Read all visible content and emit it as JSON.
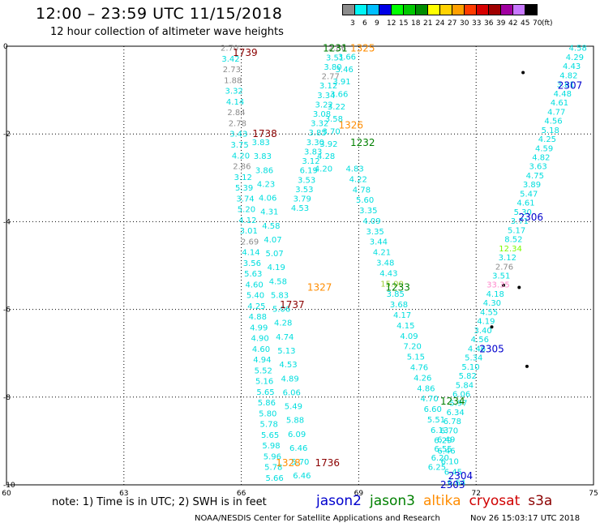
{
  "title": "12:00 – 23:59 UTC 11/15/2018",
  "subtitle": "12 hour collection of altimeter wave heights",
  "scale": {
    "unit_label": "(ft)",
    "bins": [
      {
        "label": "3",
        "color": "#8c8c8c"
      },
      {
        "label": "6",
        "color": "#00f5f5"
      },
      {
        "label": "9",
        "color": "#00bfff"
      },
      {
        "label": "12",
        "color": "#0000e6"
      },
      {
        "label": "15",
        "color": "#00ff00"
      },
      {
        "label": "18",
        "color": "#00c800"
      },
      {
        "label": "21",
        "color": "#008c00"
      },
      {
        "label": "24",
        "color": "#ffff00"
      },
      {
        "label": "27",
        "color": "#ffd200"
      },
      {
        "label": "30",
        "color": "#ffa000"
      },
      {
        "label": "33",
        "color": "#ff3c00"
      },
      {
        "label": "36",
        "color": "#d70000"
      },
      {
        "label": "39",
        "color": "#a00000"
      },
      {
        "label": "42",
        "color": "#a000a0"
      },
      {
        "label": "45",
        "color": "#c878ff"
      },
      {
        "label": "70",
        "color": "#000000"
      }
    ]
  },
  "axes": {
    "lon_labels": [
      "60",
      "63",
      "66",
      "69",
      "72",
      "75"
    ],
    "lat_labels": [
      "0",
      "-2",
      "-4",
      "-6",
      "-8",
      "-10"
    ]
  },
  "tracks": [
    {
      "time": "1739",
      "color": "#8b0000",
      "lon": 66.1,
      "lat": -0.15
    },
    {
      "time": "1738",
      "color": "#8b0000",
      "lon": 66.6,
      "lat": -2.0
    },
    {
      "time": "1737",
      "color": "#8b0000",
      "lon": 67.3,
      "lat": -5.9
    },
    {
      "time": "1736",
      "color": "#8b0000",
      "lon": 68.2,
      "lat": -9.5
    },
    {
      "time": "1231",
      "color": "#008000",
      "lon": 68.4,
      "lat": -0.05
    },
    {
      "time": "1232",
      "color": "#008000",
      "lon": 69.1,
      "lat": -2.2
    },
    {
      "time": "1233",
      "color": "#008000",
      "lon": 70.0,
      "lat": -5.5
    },
    {
      "time": "1234",
      "color": "#008000",
      "lon": 71.4,
      "lat": -8.1
    },
    {
      "time": "1325",
      "color": "#ff8c00",
      "lon": 69.1,
      "lat": -0.05
    },
    {
      "time": "1326",
      "color": "#ff8c00",
      "lon": 68.8,
      "lat": -1.8
    },
    {
      "time": "1327",
      "color": "#ff8c00",
      "lon": 68.0,
      "lat": -5.5
    },
    {
      "time": "1328",
      "color": "#ff8c00",
      "lon": 67.2,
      "lat": -9.5
    },
    {
      "time": "2307",
      "color": "#0000cd",
      "lon": 74.4,
      "lat": -0.9
    },
    {
      "time": "2306",
      "color": "#0000cd",
      "lon": 73.4,
      "lat": -3.9
    },
    {
      "time": "2305",
      "color": "#0000cd",
      "lon": 72.4,
      "lat": -6.9
    },
    {
      "time": "2304",
      "color": "#0000cd",
      "lon": 71.6,
      "lat": -9.8
    },
    {
      "time": "2303",
      "color": "#0000cd",
      "lon": 71.4,
      "lat": -10.0
    }
  ],
  "swaths": [
    {
      "name": "s3a",
      "lon0": 65.7,
      "lon1": 66.85,
      "values": [
        "2.70",
        "3.42",
        "2.73",
        "1.88",
        "3.32",
        "4.14",
        "2.84",
        "2.78",
        "3.43",
        "3.75",
        "4.20",
        "2.86",
        "3.12",
        "5.39",
        "3.74",
        "5.20",
        "4.12",
        "3.01",
        "2.69",
        "4.14",
        "3.56",
        "5.63",
        "4.60",
        "5.40",
        "4.25",
        "4.88",
        "4.99",
        "4.90",
        "4.60",
        "4.94",
        "5.52",
        "5.16",
        "5.65",
        "5.86",
        "5.80",
        "5.78",
        "5.65",
        "5.98",
        "5.96",
        "5.78",
        "5.66"
      ]
    },
    {
      "name": "jason3",
      "lon0": 66.5,
      "lon1": 67.55,
      "values": [
        "3.83",
        "3.83",
        "3.86",
        "4.23",
        "4.06",
        "4.31",
        "4.58",
        "4.07",
        "5.07",
        "4.19",
        "4.58",
        "5.83",
        "5.06",
        "4.28",
        "4.74",
        "5.13",
        "4.53",
        "4.89",
        "6.06",
        "5.49",
        "5.88",
        "6.09",
        "6.46",
        "5.70",
        "6.46"
      ]
    },
    {
      "name": "jason3b",
      "lon0": 68.45,
      "lon1": 67.5,
      "values": [
        "2.86",
        "3.51",
        "3.80",
        "2.77",
        "3.12",
        "3.34",
        "3.22",
        "3.08",
        "3.32",
        "3.85",
        "3.30",
        "3.83",
        "3.12",
        "6.19",
        "3.53",
        "3.53",
        "3.79",
        "4.53"
      ]
    },
    {
      "name": "altika",
      "lon0": 68.7,
      "lon1": 68.1,
      "values": [
        "3.66",
        "3.46",
        "3.91",
        "3.66",
        "3.22",
        "3.58",
        "3.70",
        "3.92",
        "4.28",
        "4.20"
      ]
    },
    {
      "name": "jason3c",
      "lon0": 68.9,
      "lon1": 71.5,
      "values": [
        "4.83",
        "4.22",
        "4.78",
        "5.60",
        "3.35",
        "4.09",
        "3.35",
        "3.44",
        "4.21",
        "3.48",
        "4.43",
        "15.00",
        "3.85",
        "3.68",
        "4.17",
        "4.15",
        "4.09",
        "7.20",
        "5.15",
        "4.76",
        "4.26",
        "4.86",
        "4.70",
        "6.60",
        "5.51",
        "6.13",
        "6.29",
        "6.46",
        "6.10",
        "6.45",
        "6.64"
      ]
    },
    {
      "name": "jason2",
      "lon0": 74.6,
      "lon1": 71.0,
      "values": [
        "4.58",
        "4.29",
        "4.43",
        "4.82",
        "3.81",
        "4.48",
        "4.61",
        "4.77",
        "4.56",
        "5.18",
        "4.25",
        "4.59",
        "4.82",
        "3.63",
        "4.75",
        "3.89",
        "5.47",
        "4.61",
        "5.30",
        "3.71",
        "5.17",
        "8.52",
        "12.34",
        "3.12",
        "2.76",
        "3.51",
        "33.35",
        "4.18",
        "4.30",
        "4.55",
        "4.19",
        "3.40",
        "4.56",
        "4.46",
        "5.34",
        "5.10",
        "5.82",
        "5.84",
        "6.06",
        "5.97",
        "6.34",
        "6.78",
        "6.70",
        "6.49",
        "6.55",
        "6.20",
        "6.25"
      ]
    }
  ],
  "note": "note:  1) Time is in UTC;  2) SWH is in feet",
  "legend": [
    {
      "label": "jason2",
      "color": "#0000cd"
    },
    {
      "label": "jason3",
      "color": "#008000"
    },
    {
      "label": "altika",
      "color": "#ff8c00"
    },
    {
      "label": "cryosat",
      "color": "#d00000"
    },
    {
      "label": "s3a",
      "color": "#8b0000"
    }
  ],
  "credit": "NOAA/NESDIS Center for Satellite Applications and Research",
  "stamp": "Nov 26 15:03:17 UTC 2018"
}
